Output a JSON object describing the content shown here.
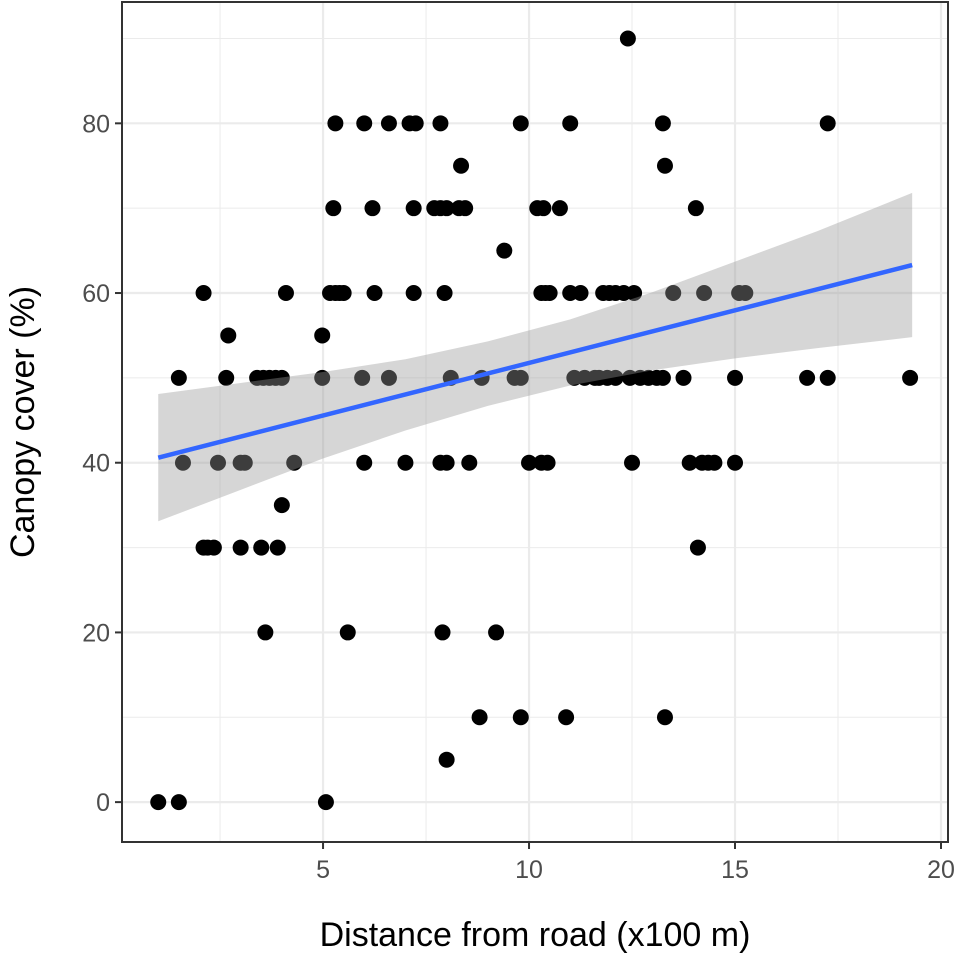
{
  "chart_data": {
    "type": "scatter",
    "title": "",
    "xlabel": "Distance from road (x100 m)",
    "ylabel": "Canopy cover (%)",
    "xlim": [
      0.12,
      20.17
    ],
    "ylim": [
      -4.7,
      94.3
    ],
    "x_ticks": [
      5,
      10,
      15,
      20
    ],
    "y_ticks": [
      0,
      20,
      40,
      60,
      80
    ],
    "x_tick_labels": [
      "5",
      "10",
      "15",
      "20"
    ],
    "y_tick_labels": [
      "0",
      "20",
      "40",
      "60",
      "80"
    ],
    "grid": true,
    "legend": "none",
    "colors": {
      "points": "#000000",
      "fit_line": "#3366FF",
      "ci_band": "#999999",
      "panel_border": "#333333",
      "grid": "#ebebeb"
    },
    "points": [
      [
        1.0,
        0
      ],
      [
        1.5,
        0
      ],
      [
        5.07,
        0
      ],
      [
        8.0,
        5
      ],
      [
        8.8,
        10
      ],
      [
        9.8,
        10
      ],
      [
        10.9,
        10
      ],
      [
        13.3,
        10
      ],
      [
        3.6,
        20
      ],
      [
        5.6,
        20
      ],
      [
        7.9,
        20
      ],
      [
        9.2,
        20
      ],
      [
        2.1,
        30
      ],
      [
        2.2,
        30
      ],
      [
        2.35,
        30
      ],
      [
        3.0,
        30
      ],
      [
        3.5,
        30
      ],
      [
        3.9,
        30
      ],
      [
        14.1,
        30
      ],
      [
        4.0,
        35
      ],
      [
        1.6,
        40
      ],
      [
        2.45,
        40
      ],
      [
        3.0,
        40
      ],
      [
        3.1,
        40
      ],
      [
        4.3,
        40
      ],
      [
        6.0,
        40
      ],
      [
        7.0,
        40
      ],
      [
        7.85,
        40
      ],
      [
        8.0,
        40
      ],
      [
        8.55,
        40
      ],
      [
        10.0,
        40
      ],
      [
        10.3,
        40
      ],
      [
        10.45,
        40
      ],
      [
        12.5,
        40
      ],
      [
        13.9,
        40
      ],
      [
        14.2,
        40
      ],
      [
        14.35,
        40
      ],
      [
        14.5,
        40
      ],
      [
        15.0,
        40
      ],
      [
        1.5,
        50
      ],
      [
        2.65,
        50
      ],
      [
        3.4,
        50
      ],
      [
        3.55,
        50
      ],
      [
        3.7,
        50
      ],
      [
        3.85,
        50
      ],
      [
        4.0,
        50
      ],
      [
        4.98,
        50
      ],
      [
        5.95,
        50
      ],
      [
        6.6,
        50
      ],
      [
        8.1,
        50
      ],
      [
        8.85,
        50
      ],
      [
        9.65,
        50
      ],
      [
        9.8,
        50
      ],
      [
        11.1,
        50
      ],
      [
        11.35,
        50
      ],
      [
        11.6,
        50
      ],
      [
        11.7,
        50
      ],
      [
        11.9,
        50
      ],
      [
        12.1,
        50
      ],
      [
        12.45,
        50
      ],
      [
        12.7,
        50
      ],
      [
        12.9,
        50
      ],
      [
        13.1,
        50
      ],
      [
        13.25,
        50
      ],
      [
        13.75,
        50
      ],
      [
        15.0,
        50
      ],
      [
        16.75,
        50
      ],
      [
        17.25,
        50
      ],
      [
        19.25,
        50
      ],
      [
        2.7,
        55
      ],
      [
        4.98,
        55
      ],
      [
        2.1,
        60
      ],
      [
        4.1,
        60
      ],
      [
        5.17,
        60
      ],
      [
        5.3,
        60
      ],
      [
        5.4,
        60
      ],
      [
        5.5,
        60
      ],
      [
        6.25,
        60
      ],
      [
        7.2,
        60
      ],
      [
        7.95,
        60
      ],
      [
        10.3,
        60
      ],
      [
        10.4,
        60
      ],
      [
        10.5,
        60
      ],
      [
        11.0,
        60
      ],
      [
        11.25,
        60
      ],
      [
        11.8,
        60
      ],
      [
        11.95,
        60
      ],
      [
        12.1,
        60
      ],
      [
        12.3,
        60
      ],
      [
        12.55,
        60
      ],
      [
        13.5,
        60
      ],
      [
        14.25,
        60
      ],
      [
        15.1,
        60
      ],
      [
        15.25,
        60
      ],
      [
        9.4,
        65
      ],
      [
        5.25,
        70
      ],
      [
        6.2,
        70
      ],
      [
        7.2,
        70
      ],
      [
        7.7,
        70
      ],
      [
        7.85,
        70
      ],
      [
        8.0,
        70
      ],
      [
        8.3,
        70
      ],
      [
        8.45,
        70
      ],
      [
        10.2,
        70
      ],
      [
        10.35,
        70
      ],
      [
        10.75,
        70
      ],
      [
        14.05,
        70
      ],
      [
        8.35,
        75
      ],
      [
        13.3,
        75
      ],
      [
        5.3,
        80
      ],
      [
        6.0,
        80
      ],
      [
        6.6,
        80
      ],
      [
        7.1,
        80
      ],
      [
        7.25,
        80
      ],
      [
        7.85,
        80
      ],
      [
        9.8,
        80
      ],
      [
        11.0,
        80
      ],
      [
        13.25,
        80
      ],
      [
        17.25,
        80
      ],
      [
        12.4,
        90
      ]
    ],
    "fit_line": {
      "x": [
        1.0,
        19.3
      ],
      "y": [
        40.6,
        63.3
      ]
    },
    "ci_band": {
      "x": [
        1,
        3,
        5,
        7,
        9,
        11,
        13,
        15,
        17,
        19.3
      ],
      "lower": [
        33.1,
        36.8,
        40.5,
        43.8,
        46.7,
        49.1,
        50.9,
        52.3,
        53.5,
        54.8
      ],
      "upper": [
        48.1,
        49.4,
        50.7,
        52.2,
        54.3,
        56.9,
        60.1,
        63.7,
        67.3,
        71.8
      ]
    }
  }
}
